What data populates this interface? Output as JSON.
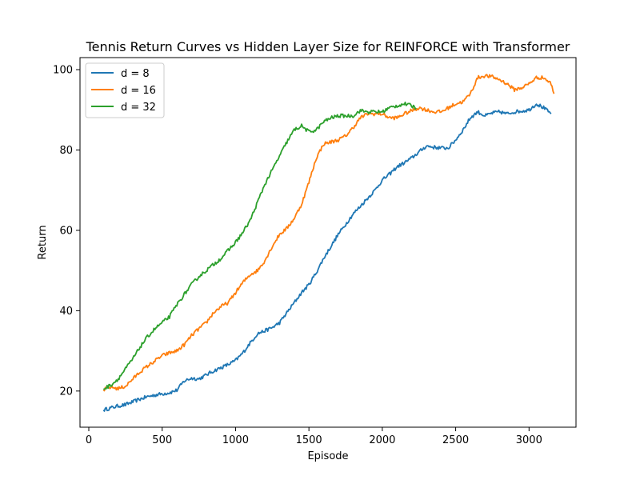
{
  "chart_data": {
    "type": "line",
    "title": "Tennis Return Curves vs Hidden Layer Size for REINFORCE with Transformer",
    "xlabel": "Episode",
    "ylabel": "Return",
    "xlim": [
      -60,
      3320
    ],
    "ylim": [
      11,
      103
    ],
    "xticks": [
      0,
      500,
      1000,
      1500,
      2000,
      2500,
      3000
    ],
    "yticks": [
      20,
      40,
      60,
      80,
      100
    ],
    "grid": false,
    "legend_position": "top-left",
    "series": [
      {
        "name": "d = 8",
        "color": "#1f77b4",
        "points": [
          [
            100,
            15.3
          ],
          [
            150,
            15.8
          ],
          [
            200,
            16.3
          ],
          [
            250,
            16.6
          ],
          [
            300,
            17.3
          ],
          [
            350,
            18.0
          ],
          [
            400,
            18.6
          ],
          [
            450,
            19.0
          ],
          [
            500,
            19.3
          ],
          [
            550,
            19.6
          ],
          [
            600,
            20.2
          ],
          [
            650,
            22.5
          ],
          [
            700,
            23.2
          ],
          [
            750,
            23.0
          ],
          [
            800,
            24.0
          ],
          [
            850,
            25.0
          ],
          [
            900,
            25.8
          ],
          [
            950,
            26.6
          ],
          [
            1000,
            27.6
          ],
          [
            1050,
            29.5
          ],
          [
            1100,
            32.0
          ],
          [
            1150,
            34.3
          ],
          [
            1200,
            35.0
          ],
          [
            1250,
            35.8
          ],
          [
            1300,
            37.0
          ],
          [
            1350,
            39.5
          ],
          [
            1400,
            42.0
          ],
          [
            1450,
            44.5
          ],
          [
            1500,
            46.5
          ],
          [
            1550,
            49.5
          ],
          [
            1600,
            53.0
          ],
          [
            1650,
            56.0
          ],
          [
            1700,
            59.0
          ],
          [
            1750,
            61.5
          ],
          [
            1800,
            64.0
          ],
          [
            1850,
            66.0
          ],
          [
            1900,
            68.0
          ],
          [
            1950,
            70.0
          ],
          [
            2000,
            72.5
          ],
          [
            2050,
            74.0
          ],
          [
            2100,
            75.8
          ],
          [
            2150,
            76.8
          ],
          [
            2200,
            78.0
          ],
          [
            2250,
            79.5
          ],
          [
            2300,
            81.0
          ],
          [
            2350,
            80.7
          ],
          [
            2400,
            80.5
          ],
          [
            2450,
            80.5
          ],
          [
            2500,
            82.5
          ],
          [
            2550,
            85.0
          ],
          [
            2600,
            88.0
          ],
          [
            2650,
            89.5
          ],
          [
            2700,
            88.5
          ],
          [
            2750,
            89.2
          ],
          [
            2800,
            89.5
          ],
          [
            2850,
            89.0
          ],
          [
            2900,
            89.5
          ],
          [
            2950,
            89.7
          ],
          [
            3000,
            90.0
          ],
          [
            3050,
            91.5
          ],
          [
            3100,
            90.5
          ],
          [
            3150,
            89.0
          ]
        ]
      },
      {
        "name": "d = 16",
        "color": "#ff7f0e",
        "points": [
          [
            100,
            20.3
          ],
          [
            150,
            21.0
          ],
          [
            200,
            20.6
          ],
          [
            250,
            21.2
          ],
          [
            300,
            23.0
          ],
          [
            350,
            24.8
          ],
          [
            400,
            26.2
          ],
          [
            450,
            27.5
          ],
          [
            500,
            28.8
          ],
          [
            550,
            29.5
          ],
          [
            600,
            30.0
          ],
          [
            650,
            31.5
          ],
          [
            700,
            33.8
          ],
          [
            750,
            35.5
          ],
          [
            800,
            37.0
          ],
          [
            850,
            39.5
          ],
          [
            900,
            41.0
          ],
          [
            950,
            42.0
          ],
          [
            1000,
            44.5
          ],
          [
            1050,
            47.0
          ],
          [
            1100,
            49.0
          ],
          [
            1150,
            50.0
          ],
          [
            1200,
            52.5
          ],
          [
            1250,
            56.0
          ],
          [
            1300,
            59.0
          ],
          [
            1350,
            60.5
          ],
          [
            1400,
            63.0
          ],
          [
            1450,
            66.5
          ],
          [
            1500,
            72.0
          ],
          [
            1550,
            78.0
          ],
          [
            1600,
            81.5
          ],
          [
            1650,
            82.0
          ],
          [
            1700,
            82.5
          ],
          [
            1750,
            83.5
          ],
          [
            1800,
            85.5
          ],
          [
            1850,
            88.0
          ],
          [
            1900,
            89.0
          ],
          [
            1950,
            89.0
          ],
          [
            2000,
            89.0
          ],
          [
            2050,
            88.0
          ],
          [
            2100,
            88.0
          ],
          [
            2150,
            89.0
          ],
          [
            2200,
            89.8
          ],
          [
            2250,
            90.5
          ],
          [
            2300,
            90.0
          ],
          [
            2350,
            89.5
          ],
          [
            2400,
            89.5
          ],
          [
            2450,
            90.5
          ],
          [
            2500,
            91.5
          ],
          [
            2550,
            92.0
          ],
          [
            2600,
            94.0
          ],
          [
            2650,
            98.0
          ],
          [
            2700,
            98.5
          ],
          [
            2750,
            98.2
          ],
          [
            2800,
            97.5
          ],
          [
            2850,
            96.5
          ],
          [
            2900,
            95.0
          ],
          [
            2950,
            95.5
          ],
          [
            3000,
            96.5
          ],
          [
            3050,
            98.0
          ],
          [
            3100,
            98.0
          ],
          [
            3150,
            96.5
          ],
          [
            3170,
            94.0
          ]
        ]
      },
      {
        "name": "d = 32",
        "color": "#2ca02c",
        "points": [
          [
            100,
            20.5
          ],
          [
            150,
            21.5
          ],
          [
            200,
            23.0
          ],
          [
            250,
            25.5
          ],
          [
            300,
            28.0
          ],
          [
            350,
            31.0
          ],
          [
            400,
            33.5
          ],
          [
            450,
            35.5
          ],
          [
            500,
            37.0
          ],
          [
            550,
            38.5
          ],
          [
            600,
            41.5
          ],
          [
            650,
            44.0
          ],
          [
            700,
            46.5
          ],
          [
            750,
            48.5
          ],
          [
            800,
            50.0
          ],
          [
            850,
            51.5
          ],
          [
            900,
            53.0
          ],
          [
            950,
            55.0
          ],
          [
            1000,
            57.0
          ],
          [
            1050,
            59.5
          ],
          [
            1100,
            62.5
          ],
          [
            1150,
            67.0
          ],
          [
            1200,
            71.5
          ],
          [
            1250,
            75.0
          ],
          [
            1300,
            78.5
          ],
          [
            1350,
            82.0
          ],
          [
            1400,
            85.0
          ],
          [
            1450,
            86.0
          ],
          [
            1500,
            84.5
          ],
          [
            1550,
            85.0
          ],
          [
            1600,
            87.0
          ],
          [
            1650,
            88.0
          ],
          [
            1700,
            88.5
          ],
          [
            1750,
            88.5
          ],
          [
            1800,
            88.5
          ],
          [
            1850,
            89.8
          ],
          [
            1900,
            89.5
          ],
          [
            1950,
            89.5
          ],
          [
            2000,
            89.5
          ],
          [
            2050,
            90.5
          ],
          [
            2100,
            91.0
          ],
          [
            2150,
            91.5
          ],
          [
            2200,
            91.0
          ],
          [
            2230,
            90.5
          ]
        ]
      }
    ]
  }
}
